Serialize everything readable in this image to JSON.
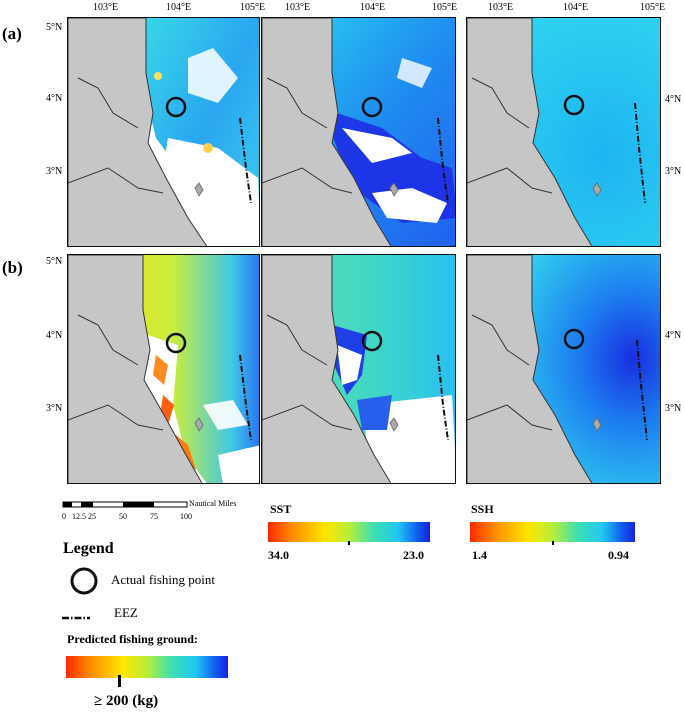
{
  "row_labels": [
    "(a)",
    "(b)"
  ],
  "lon_labels": [
    "103°E",
    "104°E",
    "105°E"
  ],
  "lat_labels": [
    "5°N",
    "4°N",
    "3°N"
  ],
  "scale_bar": {
    "unit": "Nautical Miles",
    "ticks": [
      "0",
      "12.5",
      "25",
      "50",
      "75",
      "100"
    ]
  },
  "legend": {
    "title": "Legend",
    "fishing_point": "Actual fishing point",
    "eez": "EEZ",
    "predicted_title": "Predicted fishing ground:",
    "predicted_value": "≥ 200 (kg)"
  },
  "sst": {
    "title": "SST",
    "min_label": "34.0",
    "max_label": "23.0"
  },
  "ssh": {
    "title": "SSH",
    "min_label": "1.4",
    "max_label": "0.94"
  },
  "colors": {
    "land": "#c6c6c6",
    "coast": "#333333",
    "ramp": [
      "#ff2a00",
      "#ff8c00",
      "#ffe600",
      "#b8ee3a",
      "#3ee0b0",
      "#20c8f0",
      "#1060f0",
      "#1a20e0"
    ]
  }
}
